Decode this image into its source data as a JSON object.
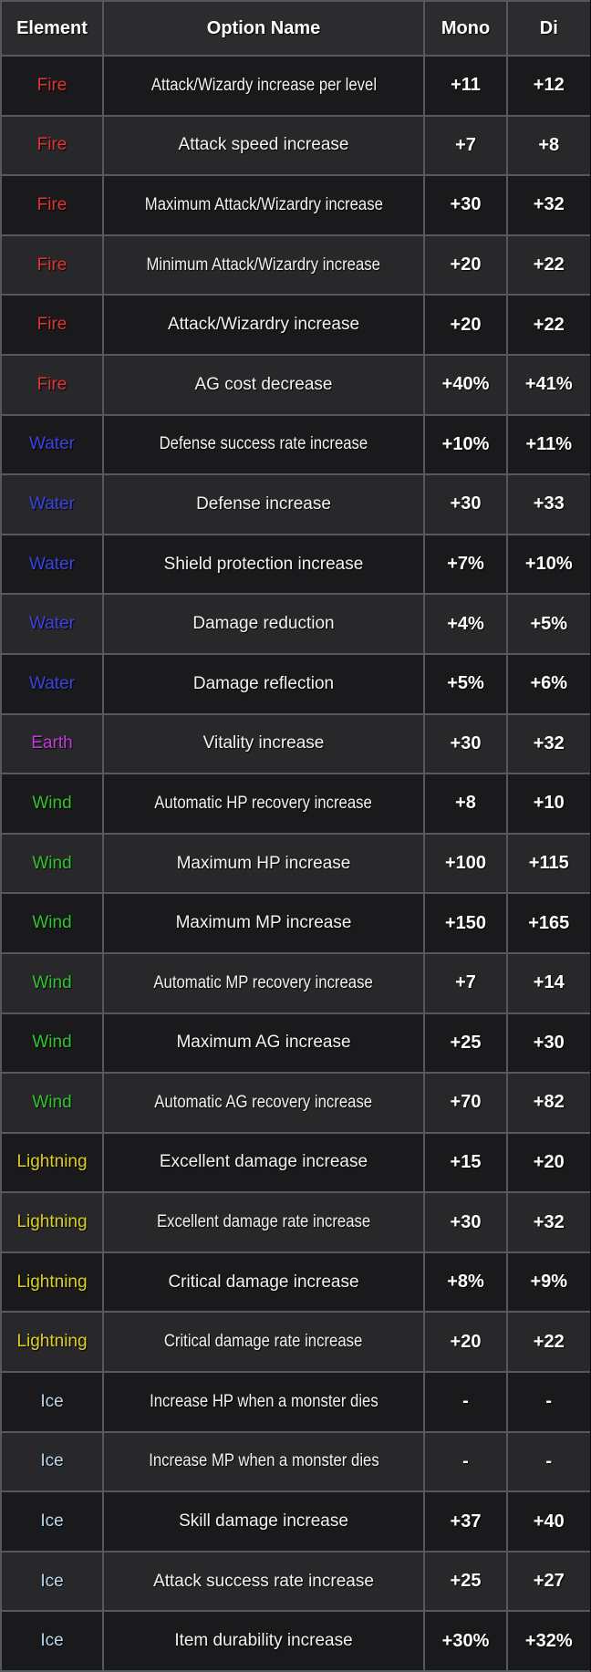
{
  "header": {
    "columns": [
      "Element",
      "Option Name",
      "Mono",
      "Di"
    ]
  },
  "colors": {
    "fire": "#e03434",
    "water": "#3b43e0",
    "earth": "#c23ad8",
    "wind": "#2fc42f",
    "lightning": "#ddd024",
    "ice": "#b8d9ef",
    "header_text": "#ffffff",
    "value_text": "#ffffff",
    "header_bg": "#2c2c2f",
    "row_dark_bg": "#1a1a1c",
    "row_light_bg": "#28282b",
    "grid_border": "#55585d"
  },
  "rows": [
    {
      "element": "Fire",
      "element_key": "fire",
      "option": "Attack/Wizardy increase per level",
      "mono": "+11",
      "di": "+12"
    },
    {
      "element": "Fire",
      "element_key": "fire",
      "option": "Attack speed increase",
      "mono": "+7",
      "di": "+8"
    },
    {
      "element": "Fire",
      "element_key": "fire",
      "option": "Maximum Attack/Wizardry increase",
      "mono": "+30",
      "di": "+32"
    },
    {
      "element": "Fire",
      "element_key": "fire",
      "option": "Minimum Attack/Wizardry increase",
      "mono": "+20",
      "di": "+22"
    },
    {
      "element": "Fire",
      "element_key": "fire",
      "option": "Attack/Wizardry increase",
      "mono": "+20",
      "di": "+22"
    },
    {
      "element": "Fire",
      "element_key": "fire",
      "option": "AG cost decrease",
      "mono": "+40%",
      "di": "+41%"
    },
    {
      "element": "Water",
      "element_key": "water",
      "option": "Defense success rate increase",
      "mono": "+10%",
      "di": "+11%"
    },
    {
      "element": "Water",
      "element_key": "water",
      "option": "Defense increase",
      "mono": "+30",
      "di": "+33"
    },
    {
      "element": "Water",
      "element_key": "water",
      "option": "Shield protection increase",
      "mono": "+7%",
      "di": "+10%"
    },
    {
      "element": "Water",
      "element_key": "water",
      "option": "Damage reduction",
      "mono": "+4%",
      "di": "+5%"
    },
    {
      "element": "Water",
      "element_key": "water",
      "option": "Damage reflection",
      "mono": "+5%",
      "di": "+6%"
    },
    {
      "element": "Earth",
      "element_key": "earth",
      "option": "Vitality increase",
      "mono": "+30",
      "di": "+32"
    },
    {
      "element": "Wind",
      "element_key": "wind",
      "option": "Automatic HP recovery increase",
      "mono": "+8",
      "di": "+10"
    },
    {
      "element": "Wind",
      "element_key": "wind",
      "option": "Maximum HP increase",
      "mono": "+100",
      "di": "+115"
    },
    {
      "element": "Wind",
      "element_key": "wind",
      "option": "Maximum MP increase",
      "mono": "+150",
      "di": "+165"
    },
    {
      "element": "Wind",
      "element_key": "wind",
      "option": "Automatic MP recovery increase",
      "mono": "+7",
      "di": "+14"
    },
    {
      "element": "Wind",
      "element_key": "wind",
      "option": "Maximum AG increase",
      "mono": "+25",
      "di": "+30"
    },
    {
      "element": "Wind",
      "element_key": "wind",
      "option": "Automatic AG recovery increase",
      "mono": "+70",
      "di": "+82"
    },
    {
      "element": "Lightning",
      "element_key": "lightning",
      "option": "Excellent damage increase",
      "mono": "+15",
      "di": "+20"
    },
    {
      "element": "Lightning",
      "element_key": "lightning",
      "option": "Excellent damage rate increase",
      "mono": "+30",
      "di": "+32"
    },
    {
      "element": "Lightning",
      "element_key": "lightning",
      "option": "Critical damage increase",
      "mono": "+8%",
      "di": "+9%"
    },
    {
      "element": "Lightning",
      "element_key": "lightning",
      "option": "Critical damage rate increase",
      "mono": "+20",
      "di": "+22"
    },
    {
      "element": "Ice",
      "element_key": "ice",
      "option": "Increase HP when a monster dies",
      "mono": "-",
      "di": "-"
    },
    {
      "element": "Ice",
      "element_key": "ice",
      "option": "Increase MP when a monster dies",
      "mono": "-",
      "di": "-"
    },
    {
      "element": "Ice",
      "element_key": "ice",
      "option": "Skill damage increase",
      "mono": "+37",
      "di": "+40"
    },
    {
      "element": "Ice",
      "element_key": "ice",
      "option": "Attack success rate increase",
      "mono": "+25",
      "di": "+27"
    },
    {
      "element": "Ice",
      "element_key": "ice",
      "option": "Item durability increase",
      "mono": "+30%",
      "di": "+32%"
    }
  ]
}
